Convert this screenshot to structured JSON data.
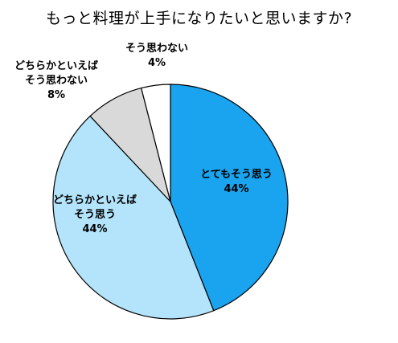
{
  "chart_data": {
    "type": "pie",
    "title": "もっと料理が上手になりたいと思いますか?",
    "slices": [
      {
        "label_lines": [
          "とてもそう思う"
        ],
        "value": 44,
        "value_label": "44%",
        "color": "#1aa3ee"
      },
      {
        "label_lines": [
          "どちらかといえば",
          "そう思う"
        ],
        "value": 44,
        "value_label": "44%",
        "color": "#b3e4fb"
      },
      {
        "label_lines": [
          "どちらかといえば",
          "そう思わない"
        ],
        "value": 8,
        "value_label": "8%",
        "color": "#d9d9d9"
      },
      {
        "label_lines": [
          "そう思わない"
        ],
        "value": 4,
        "value_label": "4%",
        "color": "#ffffff"
      }
    ],
    "start_angle_deg": 0,
    "direction": "clockwise",
    "legend": "none"
  }
}
